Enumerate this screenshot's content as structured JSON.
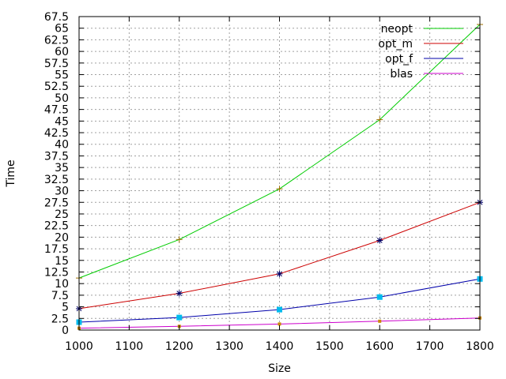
{
  "chart_data": {
    "type": "line",
    "xlabel": "Size",
    "ylabel": "Time",
    "xlim": [
      1000,
      1800
    ],
    "ylim": [
      0,
      67.5
    ],
    "xticks": [
      1000,
      1100,
      1200,
      1300,
      1400,
      1500,
      1600,
      1700,
      1800
    ],
    "yticks": [
      0,
      2.5,
      5,
      7.5,
      10,
      12.5,
      15,
      17.5,
      20,
      22.5,
      25,
      27.5,
      30,
      32.5,
      35,
      37.5,
      40,
      42.5,
      45,
      47.5,
      50,
      52.5,
      55,
      57.5,
      60,
      62.5,
      65,
      67.5
    ],
    "grid": true,
    "legend_position": "top-right",
    "x": [
      1000,
      1200,
      1400,
      1600,
      1800
    ],
    "series": [
      {
        "name": "neopt",
        "color": "#00cc00",
        "values": [
          11.2,
          19.5,
          30.4,
          45.3,
          65.8
        ]
      },
      {
        "name": "opt_m",
        "color": "#cc0000",
        "values": [
          4.6,
          7.9,
          12.1,
          19.3,
          27.5
        ]
      },
      {
        "name": "opt_f",
        "color": "#0000aa",
        "values": [
          1.7,
          2.7,
          4.4,
          7.1,
          11.0
        ]
      },
      {
        "name": "blas",
        "color": "#cc00cc",
        "values": [
          0.4,
          0.8,
          1.3,
          1.9,
          2.6
        ]
      }
    ],
    "marker_colors": {
      "plus": "#a07000",
      "star": "#000066",
      "square": "#00bbee",
      "dot": "#cc8800"
    }
  }
}
